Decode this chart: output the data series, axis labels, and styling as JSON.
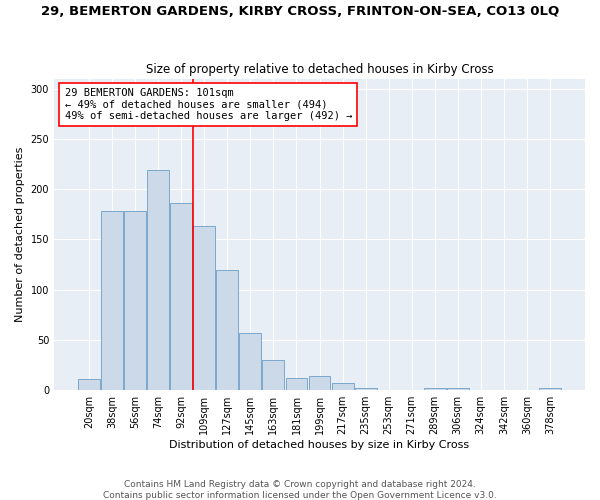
{
  "title": "29, BEMERTON GARDENS, KIRBY CROSS, FRINTON-ON-SEA, CO13 0LQ",
  "subtitle": "Size of property relative to detached houses in Kirby Cross",
  "xlabel": "Distribution of detached houses by size in Kirby Cross",
  "ylabel": "Number of detached properties",
  "categories": [
    "20sqm",
    "38sqm",
    "56sqm",
    "74sqm",
    "92sqm",
    "109sqm",
    "127sqm",
    "145sqm",
    "163sqm",
    "181sqm",
    "199sqm",
    "217sqm",
    "235sqm",
    "253sqm",
    "271sqm",
    "289sqm",
    "306sqm",
    "324sqm",
    "342sqm",
    "360sqm",
    "378sqm"
  ],
  "values": [
    11,
    178,
    178,
    219,
    186,
    163,
    120,
    57,
    30,
    12,
    14,
    7,
    2,
    0,
    0,
    2,
    2,
    0,
    0,
    0,
    2
  ],
  "bar_color": "#ccd9e8",
  "bar_edge_color": "#7ba8cc",
  "vline_x": 4.5,
  "vline_color": "red",
  "annotation_text": "29 BEMERTON GARDENS: 101sqm\n← 49% of detached houses are smaller (494)\n49% of semi-detached houses are larger (492) →",
  "annotation_box_color": "white",
  "annotation_box_edge_color": "red",
  "ylim": [
    0,
    310
  ],
  "yticks": [
    0,
    50,
    100,
    150,
    200,
    250,
    300
  ],
  "bg_color": "#e8eef5",
  "footer": "Contains HM Land Registry data © Crown copyright and database right 2024.\nContains public sector information licensed under the Open Government Licence v3.0.",
  "title_fontsize": 9.5,
  "subtitle_fontsize": 8.5,
  "tick_fontsize": 7,
  "ylabel_fontsize": 8,
  "xlabel_fontsize": 8,
  "footer_fontsize": 6.5,
  "annotation_fontsize": 7.5
}
